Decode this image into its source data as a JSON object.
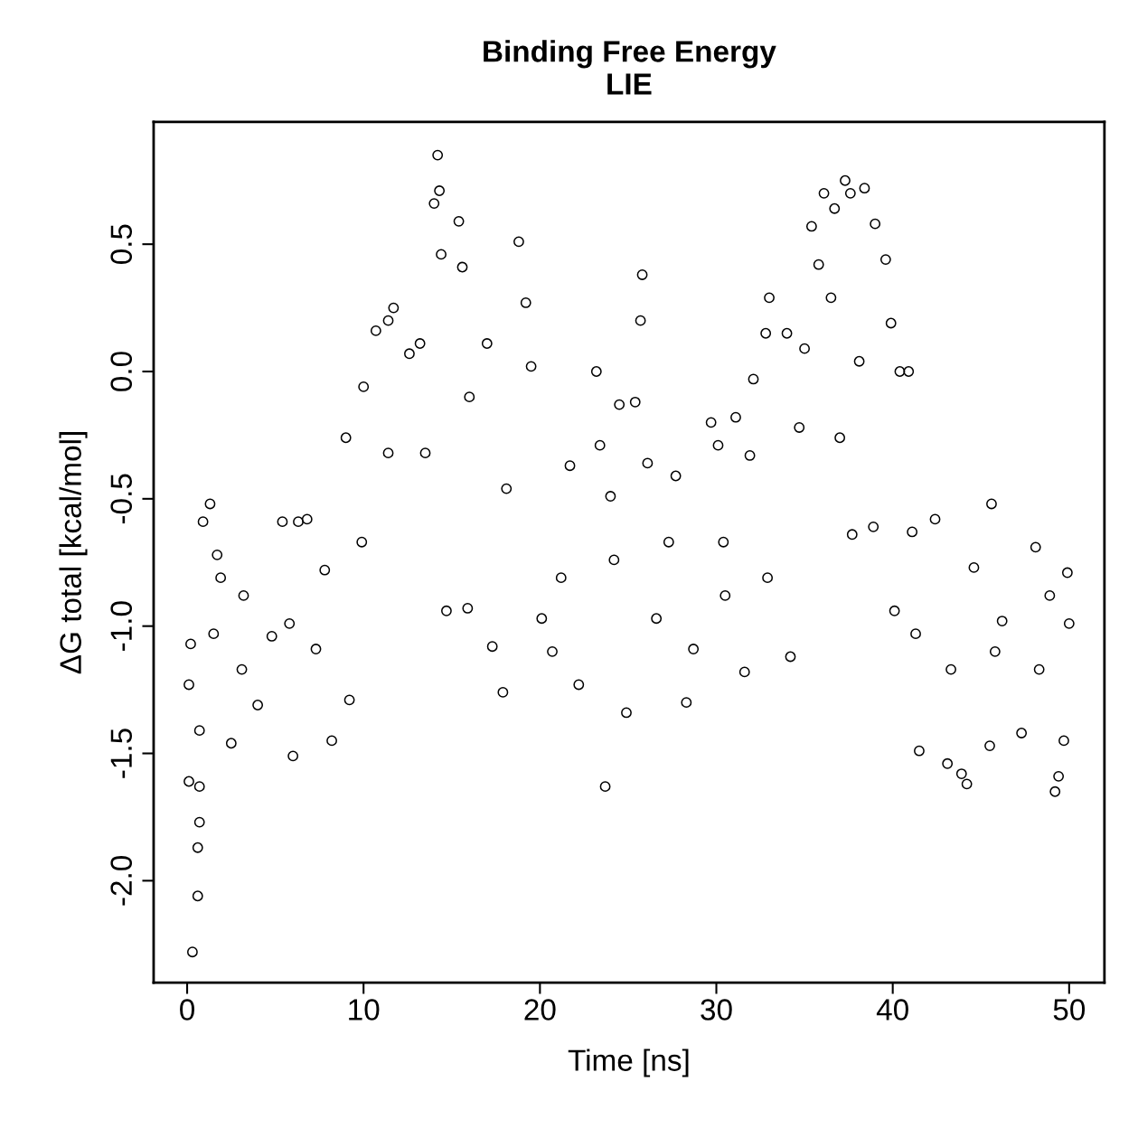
{
  "chart_data": {
    "type": "scatter",
    "title": "Binding Free Energy\nLIE",
    "xlabel": "Time [ns]",
    "ylabel": "ΔG total [kcal/mol]",
    "xlim": [
      -1.9,
      52.0
    ],
    "ylim": [
      -2.4,
      0.98
    ],
    "xticks": [
      0,
      10,
      20,
      30,
      40,
      50
    ],
    "yticks": [
      {
        "value": -2.0,
        "label": "-2.0"
      },
      -1.5,
      {
        "value": -1.0,
        "label": "-1.0"
      },
      -0.5,
      {
        "value": 0.0,
        "label": "0.0"
      },
      0.5
    ],
    "marker": "circle",
    "grid": false,
    "series": [
      {
        "color": "#000000",
        "x": [
          0.1,
          0.1,
          0.3,
          0.6,
          0.6,
          0.7,
          0.7,
          0.7,
          0.2,
          0.9,
          1.3,
          1.5,
          1.9,
          2.5,
          3.1,
          4.0,
          4.8,
          5.4,
          6.0,
          6.3,
          6.8,
          7.3,
          8.2,
          9.2,
          9.0,
          10.0,
          10.7,
          11.4,
          11.7,
          12.6,
          13.2,
          14.0,
          14.2,
          14.3,
          14.4,
          14.7,
          15.4,
          15.6,
          15.9,
          17.0,
          17.3,
          17.9,
          18.8,
          19.2,
          19.5,
          20.1,
          20.7,
          21.7,
          22.2,
          23.2,
          23.4,
          23.7,
          24.0,
          24.5,
          24.9,
          25.4,
          25.7,
          25.8,
          26.1,
          26.6,
          27.7,
          28.3,
          28.7,
          29.7,
          30.1,
          30.5,
          31.1,
          31.6,
          31.9,
          32.1,
          32.8,
          33.0,
          34.0,
          34.2,
          34.7,
          35.0,
          35.4,
          35.8,
          36.1,
          36.7,
          37.0,
          37.3,
          37.6,
          37.7,
          38.4,
          39.0,
          38.9,
          39.6,
          39.9,
          40.1,
          40.4,
          40.9,
          41.1,
          41.3,
          41.5,
          42.4,
          43.1,
          43.9,
          44.2,
          44.6,
          45.5,
          45.6,
          46.2,
          47.3,
          48.1,
          48.9,
          49.2,
          49.4,
          49.7,
          49.9,
          50.0,
          1.7,
          3.2,
          5.8,
          7.8,
          9.9,
          11.4,
          13.5,
          16.0,
          18.1,
          21.2,
          24.2,
          27.3,
          30.4,
          32.9,
          36.5,
          38.1,
          43.3,
          45.8,
          48.3
        ],
        "values": [
          -1.23,
          -1.61,
          -2.28,
          -2.06,
          -1.87,
          -1.77,
          -1.63,
          -1.41,
          -1.07,
          -0.59,
          -0.52,
          -1.03,
          -0.81,
          -1.46,
          -1.17,
          -1.31,
          -1.04,
          -0.59,
          -1.51,
          -0.59,
          -0.58,
          -1.09,
          -1.45,
          -1.29,
          -0.26,
          -0.06,
          0.16,
          0.2,
          0.25,
          0.07,
          0.11,
          0.66,
          0.85,
          0.71,
          0.46,
          -0.94,
          0.59,
          0.41,
          -0.93,
          0.11,
          -1.08,
          -1.26,
          0.51,
          0.27,
          0.02,
          -0.97,
          -1.1,
          -0.37,
          -1.23,
          0.0,
          -0.29,
          -1.63,
          -0.49,
          -0.13,
          -1.34,
          -0.12,
          0.2,
          0.38,
          -0.36,
          -0.97,
          -0.41,
          -1.3,
          -1.09,
          -0.2,
          -0.29,
          -0.88,
          -0.18,
          -1.18,
          -0.33,
          -0.03,
          0.15,
          0.29,
          0.15,
          -1.12,
          -0.22,
          0.09,
          0.57,
          0.42,
          0.7,
          0.64,
          -0.26,
          0.75,
          0.7,
          -0.64,
          0.72,
          0.58,
          -0.61,
          0.44,
          0.19,
          -0.94,
          0.0,
          0.0,
          -0.63,
          -1.03,
          -1.49,
          -0.58,
          -1.54,
          -1.58,
          -1.62,
          -0.77,
          -1.47,
          -0.52,
          -0.98,
          -1.42,
          -0.69,
          -0.88,
          -1.65,
          -1.59,
          -1.45,
          -0.79,
          -0.99,
          -0.72,
          -0.88,
          -0.99,
          -0.78,
          -0.67,
          -0.32,
          -0.32,
          -0.1,
          -0.46,
          -0.81,
          -0.74,
          -0.67,
          -0.67,
          -0.81,
          0.29,
          0.04,
          -1.17,
          -1.1,
          -1.17
        ]
      }
    ]
  }
}
